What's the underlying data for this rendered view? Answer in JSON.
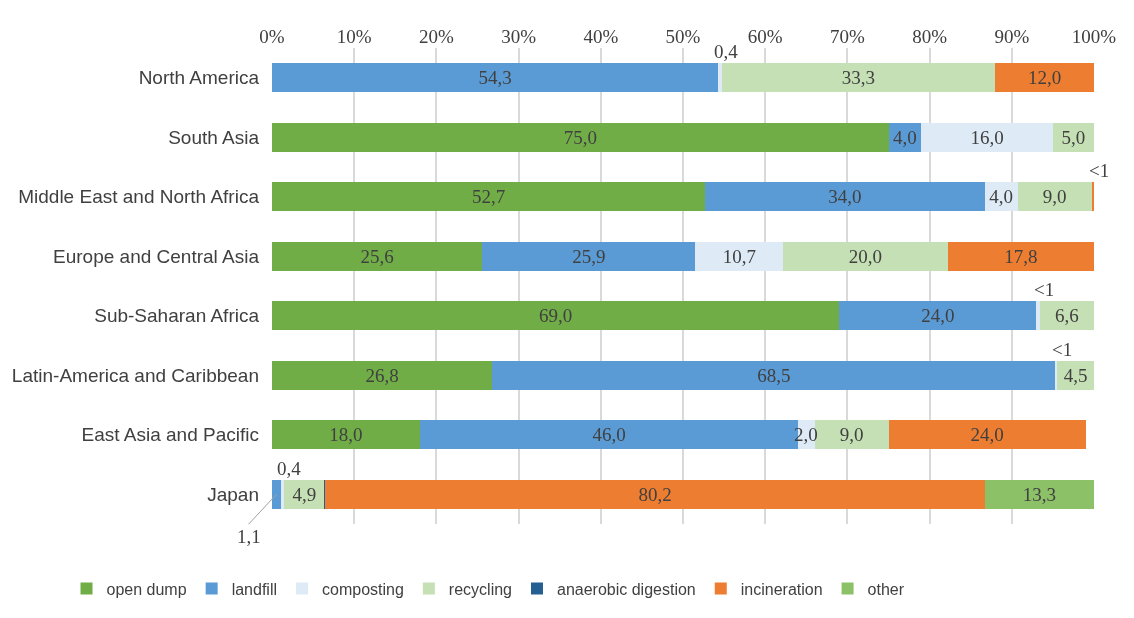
{
  "chart_data": {
    "type": "bar",
    "orientation": "horizontal",
    "stacked": true,
    "categories": [
      "North America",
      "South Asia",
      "Middle East and North Africa",
      "Europe and Central Asia",
      "Sub-Saharan Africa",
      "Latin-America and Caribbean",
      "East Asia and Pacific",
      "Japan"
    ],
    "series": [
      {
        "name": "open dump",
        "color": "#70ad47",
        "values": [
          null,
          75.0,
          52.7,
          25.6,
          69.0,
          26.8,
          18.0,
          null
        ],
        "value_labels": [
          null,
          "75,0",
          "52,7",
          "25,6",
          "69,0",
          "26,8",
          "18,0",
          null
        ]
      },
      {
        "name": "landfill",
        "color": "#5b9bd5",
        "values": [
          54.3,
          4.0,
          34.0,
          25.9,
          24.0,
          68.5,
          46.0,
          1.1
        ],
        "value_labels": [
          "54,3",
          "4,0",
          "34,0",
          "25,9",
          "24,0",
          "68,5",
          "46,0",
          "1,1"
        ]
      },
      {
        "name": "composting",
        "color": "#deebf7",
        "values": [
          0.4,
          16.0,
          4.0,
          10.7,
          0.4,
          0.2,
          2.0,
          0.4
        ],
        "value_labels": [
          "0,4",
          "16,0",
          "4,0",
          "10,7",
          "<1",
          "<1",
          "2,0",
          "0,4"
        ]
      },
      {
        "name": "recycling",
        "color": "#c5e0b4",
        "values": [
          33.3,
          5.0,
          9.0,
          20.0,
          6.6,
          4.5,
          9.0,
          4.9
        ],
        "value_labels": [
          "33,3",
          "5,0",
          "9,0",
          "20,0",
          "6,6",
          "4,5",
          "9,0",
          "4,9"
        ]
      },
      {
        "name": "anaerobic digestion",
        "color": "#255e91",
        "values": [
          null,
          null,
          null,
          null,
          null,
          null,
          null,
          0.1
        ],
        "value_labels": [
          null,
          null,
          null,
          null,
          null,
          null,
          null,
          null
        ]
      },
      {
        "name": "incineration",
        "color": "#ed7d31",
        "values": [
          12.0,
          null,
          0.3,
          17.8,
          null,
          null,
          24.0,
          80.2
        ],
        "value_labels": [
          "12,0",
          null,
          "<1",
          "17,8",
          null,
          null,
          "24,0",
          "80,2"
        ]
      },
      {
        "name": "other",
        "color": "#8cc168",
        "values": [
          null,
          null,
          null,
          null,
          null,
          null,
          null,
          13.3
        ],
        "value_labels": [
          null,
          null,
          null,
          null,
          null,
          null,
          null,
          "13,3"
        ]
      }
    ],
    "xlim": [
      0,
      100
    ],
    "xticks": [
      {
        "value": 0,
        "label": "0%"
      },
      {
        "value": 10,
        "label": "10%"
      },
      {
        "value": 20,
        "label": "20%"
      },
      {
        "value": 30,
        "label": "30%"
      },
      {
        "value": 40,
        "label": "40%"
      },
      {
        "value": 50,
        "label": "50%"
      },
      {
        "value": 60,
        "label": "60%"
      },
      {
        "value": 70,
        "label": "70%"
      },
      {
        "value": 80,
        "label": "80%"
      },
      {
        "value": 90,
        "label": "90%"
      },
      {
        "value": 100,
        "label": "100%"
      }
    ],
    "grid": "x",
    "legend": "bottom"
  }
}
